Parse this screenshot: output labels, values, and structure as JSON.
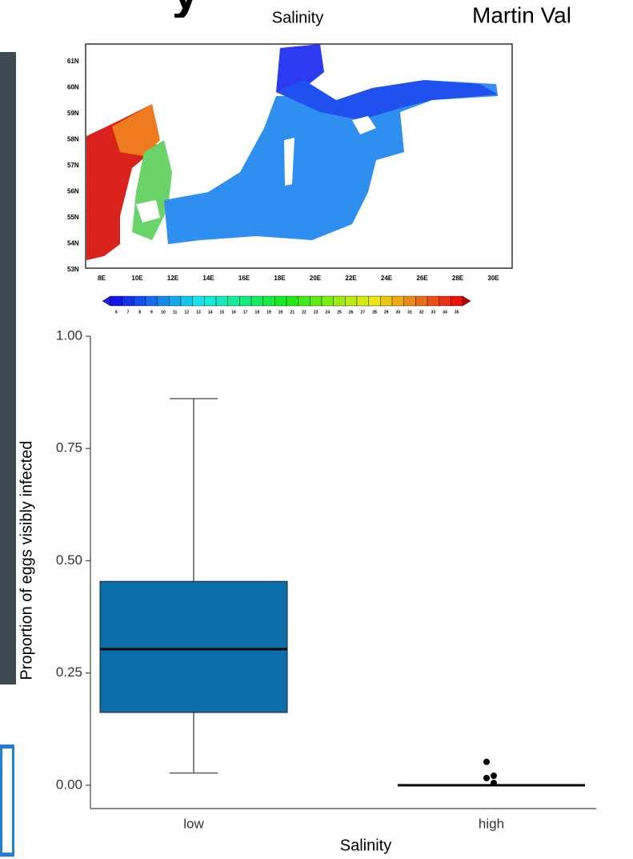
{
  "header": {
    "title_fragment": "y",
    "author": "Martin Val"
  },
  "map": {
    "title": "Salinity",
    "lat_labels": [
      "61N",
      "60N",
      "59N",
      "58N",
      "57N",
      "56N",
      "55N",
      "54N",
      "53N"
    ],
    "lon_labels": [
      "8E",
      "10E",
      "12E",
      "14E",
      "16E",
      "18E",
      "20E",
      "22E",
      "24E",
      "26E",
      "28E",
      "30E"
    ],
    "colorbar_labels": [
      6,
      7,
      8,
      9,
      10,
      11,
      12,
      13,
      14,
      15,
      16,
      17,
      18,
      19,
      20,
      21,
      22,
      23,
      24,
      25,
      26,
      27,
      28,
      29,
      30,
      31,
      32,
      33,
      34,
      35
    ]
  },
  "chart_data": {
    "type": "box",
    "x_label": "Salinity",
    "y_label": "Proportion of eggs visibly infected",
    "categories": [
      "low",
      "high"
    ],
    "color": "#0a6fa8",
    "boxes": [
      {
        "whisker_low": 0.027,
        "q1": 0.162,
        "median": 0.303,
        "q3": 0.454,
        "whisker_high": 0.861,
        "outliers": []
      },
      {
        "whisker_low": 0,
        "q1": 0,
        "median": 0,
        "q3": 0,
        "whisker_high": 0,
        "outliers": [
          0.052,
          0.021,
          0.016,
          0.005
        ]
      }
    ],
    "ylim": [
      -0.052,
      1.0
    ],
    "yticks": [
      {
        "value": 0,
        "label": "0.00"
      },
      {
        "value": 0.25,
        "label": "0.25"
      },
      {
        "value": 0.5,
        "label": "0.50"
      },
      {
        "value": 0.75,
        "label": "0.75"
      },
      {
        "value": 1,
        "label": "1.00"
      }
    ]
  }
}
